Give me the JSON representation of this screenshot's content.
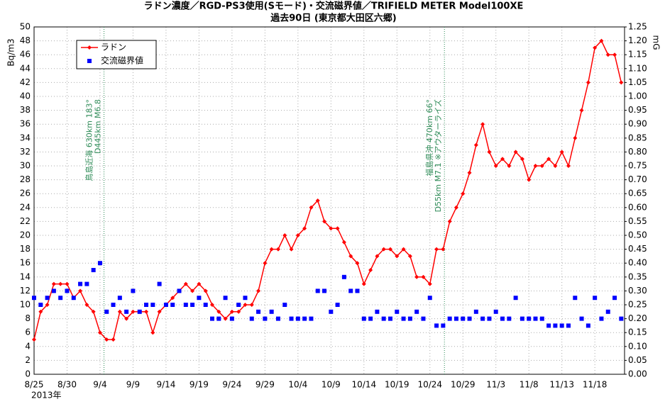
{
  "chart_data": {
    "type": "line",
    "title": "ラドン濃度／RGD-PS3使用(Sモード)・交流磁界値／TRIFIELD METER Model100XE",
    "subtitle": "過去90日 (東京都大田区六郷)",
    "ylabel": "Bq/m3",
    "y2label": "mG",
    "year_label": "2013年",
    "categories": [
      "8/25",
      null,
      null,
      null,
      null,
      "8/30",
      null,
      null,
      null,
      null,
      "9/4",
      null,
      null,
      null,
      null,
      "9/9",
      null,
      null,
      null,
      null,
      "9/14",
      null,
      null,
      null,
      null,
      "9/19",
      null,
      null,
      null,
      null,
      "9/24",
      null,
      null,
      null,
      null,
      "9/29",
      null,
      null,
      null,
      null,
      "10/4",
      null,
      null,
      null,
      null,
      "10/9",
      null,
      null,
      null,
      null,
      "10/14",
      null,
      null,
      null,
      null,
      "10/19",
      null,
      null,
      null,
      null,
      "10/24",
      null,
      null,
      null,
      null,
      "10/29",
      null,
      null,
      null,
      null,
      "11/3",
      null,
      null,
      null,
      null,
      "11/8",
      null,
      null,
      null,
      null,
      "11/13",
      null,
      null,
      null,
      null,
      "11/18",
      null,
      null,
      null,
      null
    ],
    "series": [
      {
        "name": "ラドン",
        "color": "#ff0000",
        "marker": "diamond",
        "values": [
          5,
          9,
          10,
          13,
          13,
          13,
          11,
          12,
          10,
          9,
          6,
          5,
          5,
          9,
          8,
          9,
          9,
          9,
          6,
          9,
          10,
          11,
          12,
          13,
          12,
          13,
          12,
          10,
          9,
          8,
          9,
          9,
          10,
          10,
          12,
          16,
          18,
          18,
          20,
          18,
          20,
          21,
          24,
          25,
          22,
          21,
          21,
          19,
          17,
          16,
          13,
          15,
          17,
          18,
          18,
          17,
          18,
          17,
          14,
          14,
          13,
          18,
          18,
          22,
          24,
          26,
          29,
          33,
          36,
          32,
          30,
          31,
          30,
          32,
          31,
          28,
          30,
          30,
          31,
          30,
          32,
          30,
          34,
          38,
          42,
          47,
          48,
          46,
          46,
          42
        ]
      },
      {
        "name": "交流磁界値",
        "color": "#0000ff",
        "marker": "square",
        "axis": "y2",
        "values": [
          0.275,
          0.25,
          0.275,
          0.3,
          0.275,
          0.3,
          0.275,
          0.325,
          0.325,
          0.375,
          0.4,
          0.225,
          0.25,
          0.275,
          0.225,
          0.3,
          0.225,
          0.25,
          0.25,
          0.325,
          0.25,
          0.25,
          0.3,
          0.25,
          0.25,
          0.275,
          0.25,
          0.2,
          0.2,
          0.275,
          0.2,
          0.25,
          0.275,
          0.2,
          0.225,
          0.2,
          0.225,
          0.2,
          0.25,
          0.2,
          0.2,
          0.2,
          0.2,
          0.3,
          0.3,
          0.225,
          0.25,
          0.35,
          0.3,
          0.3,
          0.2,
          0.2,
          0.225,
          0.2,
          0.2,
          0.225,
          0.2,
          0.2,
          0.225,
          0.2,
          0.275,
          0.175,
          0.175,
          0.2,
          0.2,
          0.2,
          0.2,
          0.225,
          0.2,
          0.2,
          0.225,
          0.2,
          0.2,
          0.275,
          0.2,
          0.2,
          0.2,
          0.2,
          0.175,
          0.175,
          0.175,
          0.175,
          0.275,
          0.2,
          0.175,
          0.275,
          0.2,
          0.225,
          0.275,
          0.2
        ]
      }
    ],
    "ylim": [
      0,
      50
    ],
    "yticks": [
      0,
      2,
      4,
      6,
      8,
      10,
      12,
      14,
      16,
      18,
      20,
      22,
      24,
      26,
      28,
      30,
      32,
      34,
      36,
      38,
      40,
      42,
      44,
      46,
      48,
      50
    ],
    "y2lim": [
      0,
      1.25
    ],
    "y2ticks": [
      {
        "value": 0,
        "label": "0.00"
      },
      {
        "value": 0.05,
        "label": "0.05"
      },
      {
        "value": 0.1,
        "label": "0.10"
      },
      {
        "value": 0.15,
        "label": "0.15"
      },
      {
        "value": 0.2,
        "label": "0.20"
      },
      {
        "value": 0.25,
        "label": "0.25"
      },
      {
        "value": 0.3,
        "label": "0.30"
      },
      {
        "value": 0.35,
        "label": "0.35"
      },
      {
        "value": 0.4,
        "label": "0.40"
      },
      {
        "value": 0.45,
        "label": "0.45"
      },
      {
        "value": 0.5,
        "label": "0.50"
      },
      {
        "value": 0.55,
        "label": "0.55"
      },
      {
        "value": 0.6,
        "label": "0.60"
      },
      {
        "value": 0.65,
        "label": "0.65"
      },
      {
        "value": 0.7,
        "label": "0.70"
      },
      {
        "value": 0.75,
        "label": "0.75"
      },
      {
        "value": 0.8,
        "label": "0.80"
      },
      {
        "value": 0.85,
        "label": "0.85"
      },
      {
        "value": 0.9,
        "label": "0.90"
      },
      {
        "value": 0.95,
        "label": "0.95"
      },
      {
        "value": 1,
        "label": "1.00"
      },
      {
        "value": 1.05,
        "label": "1.05"
      },
      {
        "value": 1.1,
        "label": "1.10"
      },
      {
        "value": 1.15,
        "label": "1.15"
      },
      {
        "value": 1.2,
        "label": "1.20"
      },
      {
        "value": 1.25,
        "label": "1.25"
      }
    ],
    "grid": true,
    "legend": "upper left",
    "annotations": [
      {
        "x": 10.6,
        "color": "#2e8b57",
        "lines": [
          "鳥島近海 630km 183°",
          "D445km M6.8"
        ]
      },
      {
        "x": 62.2,
        "color": "#2e8b57",
        "lines": [
          "福島県沖 470km 66°",
          "D55km M7.1 ※アウターライズ"
        ]
      }
    ]
  }
}
